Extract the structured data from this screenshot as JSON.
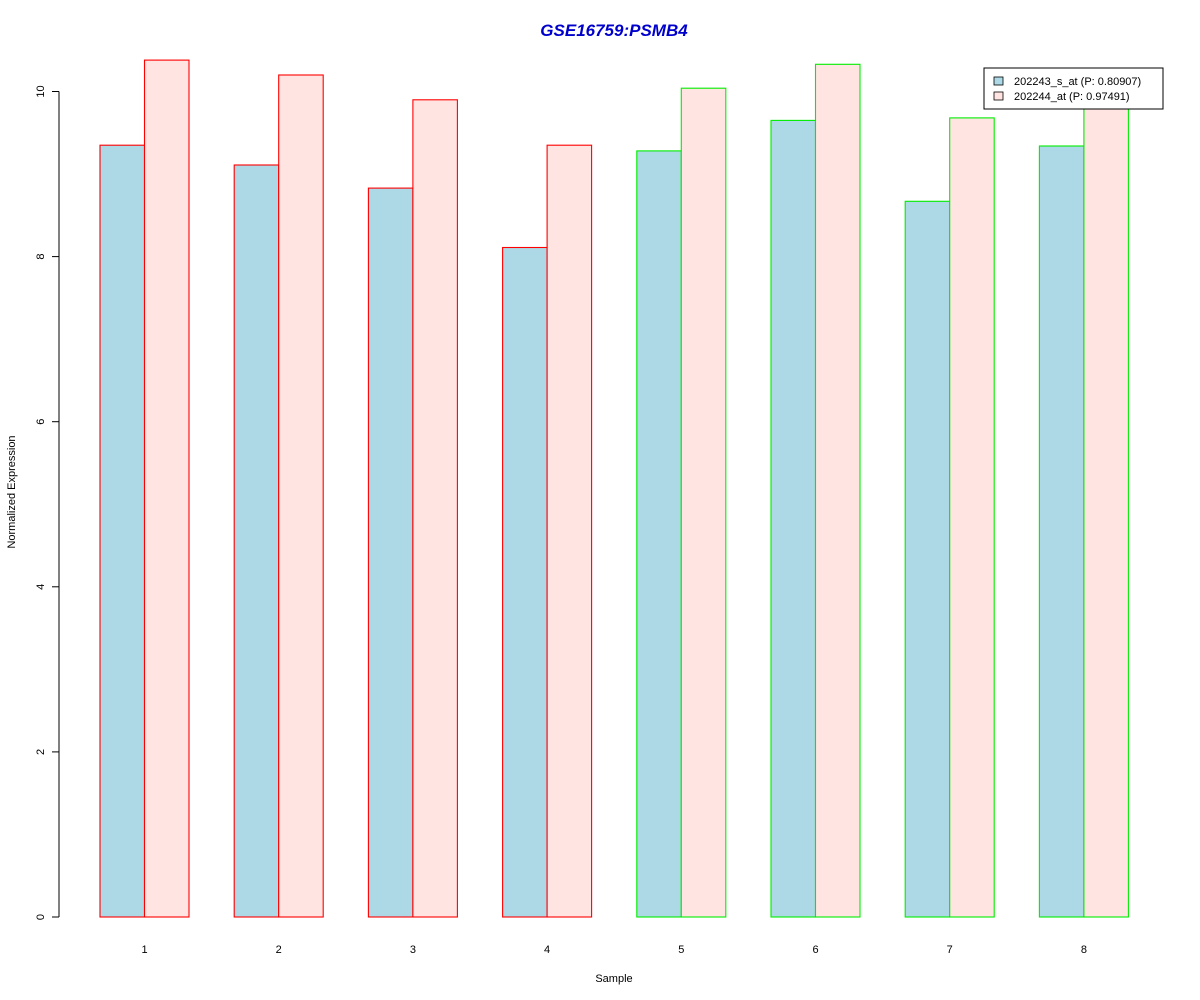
{
  "chart_data": {
    "type": "bar",
    "title": "GSE16759:PSMB4",
    "xlabel": "Sample",
    "ylabel": "Normalized Expression",
    "categories": [
      "1",
      "2",
      "3",
      "4",
      "5",
      "6",
      "7",
      "8"
    ],
    "series": [
      {
        "name": "202243_s_at (P: 0.80907)",
        "values": [
          9.35,
          9.11,
          8.83,
          8.11,
          9.28,
          9.65,
          8.67,
          9.34
        ],
        "fill": "#add8e6"
      },
      {
        "name": "202244_at (P: 0.97491)",
        "values": [
          10.38,
          10.2,
          9.9,
          9.35,
          10.04,
          10.33,
          9.68,
          9.9
        ],
        "fill": "#ffe4e1"
      }
    ],
    "group_border_colors": [
      "#ff0000",
      "#ff0000",
      "#ff0000",
      "#ff0000",
      "#00ee00",
      "#00ee00",
      "#00ee00",
      "#00ee00"
    ],
    "yticks": [
      0,
      2,
      4,
      6,
      8,
      10
    ],
    "ylim": [
      0,
      10.4
    ],
    "grid": false,
    "legend_position": "top-right"
  },
  "colors": {
    "title": "#0000cd",
    "axis": "#000000"
  }
}
